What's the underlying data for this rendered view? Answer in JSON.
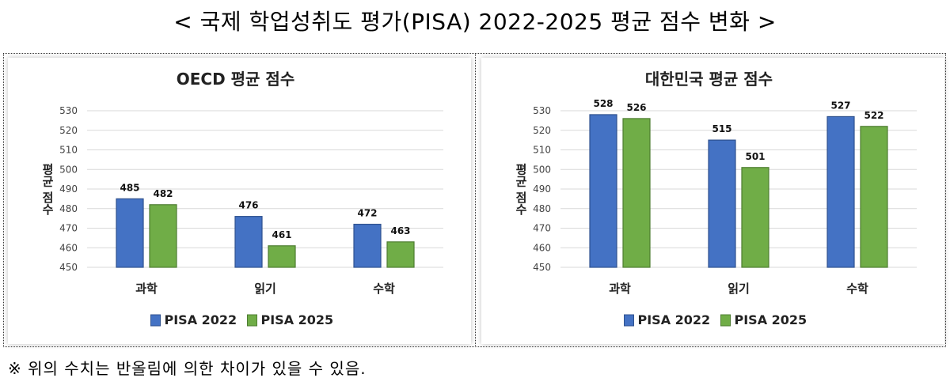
{
  "page": {
    "title": "< 국제 학업성취도 평가(PISA) 2022-2025 평균 점수 변화 >",
    "footnote": "※ 위의 수치는 반올림에 의한 차이가 있을 수 있음."
  },
  "colors": {
    "series_2022": "#4472c4",
    "series_2025": "#70ad47",
    "grid": "#d9d9d9"
  },
  "chart_data": [
    {
      "type": "bar",
      "title": "OECD 평균 점수",
      "ylabel": "평균 점수",
      "xlabel": "",
      "categories": [
        "과학",
        "읽기",
        "수학"
      ],
      "series": [
        {
          "name": "PISA 2022",
          "values": [
            485,
            476,
            472
          ]
        },
        {
          "name": "PISA 2025",
          "values": [
            482,
            461,
            463
          ]
        }
      ],
      "ylim": [
        450,
        530
      ],
      "yticks": [
        450,
        460,
        470,
        480,
        490,
        500,
        510,
        520,
        530
      ],
      "grid": true,
      "legend": "bottom"
    },
    {
      "type": "bar",
      "title": "대한민국 평균 점수",
      "ylabel": "평균 점수",
      "xlabel": "",
      "categories": [
        "과학",
        "읽기",
        "수학"
      ],
      "series": [
        {
          "name": "PISA 2022",
          "values": [
            528,
            515,
            527
          ]
        },
        {
          "name": "PISA 2025",
          "values": [
            526,
            501,
            522
          ]
        }
      ],
      "ylim": [
        450,
        530
      ],
      "yticks": [
        450,
        460,
        470,
        480,
        490,
        500,
        510,
        520,
        530
      ],
      "grid": true,
      "legend": "bottom"
    }
  ]
}
